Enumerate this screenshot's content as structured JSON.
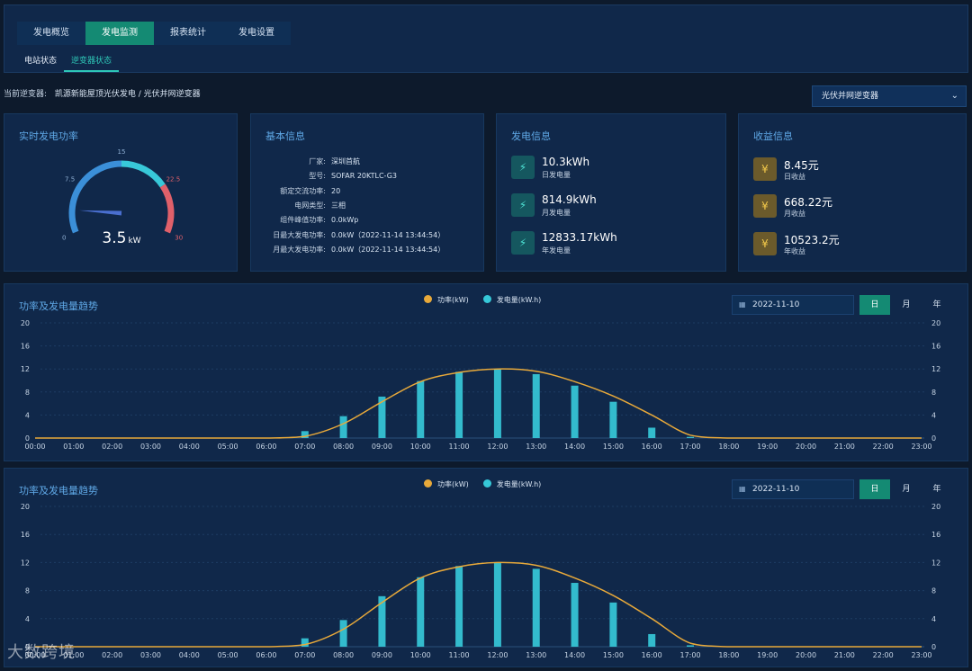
{
  "nav": {
    "tabs": [
      {
        "label": "发电概览",
        "active": false
      },
      {
        "label": "发电监测",
        "active": true
      },
      {
        "label": "报表统计",
        "active": false
      },
      {
        "label": "发电设置",
        "active": false
      }
    ],
    "subtabs": [
      {
        "label": "电站状态",
        "active": false
      },
      {
        "label": "逆变器状态",
        "active": true
      }
    ]
  },
  "current": {
    "label": "当前逆变器:",
    "value": "凯源新能屋顶光伏发电 / 光伏并网逆变器"
  },
  "inverter_select": {
    "value": "光伏并网逆变器",
    "icon": "chevron-down-icon"
  },
  "gauge": {
    "title": "实时发电功率",
    "value": "3.5",
    "unit": "kW",
    "value_num": 3.5,
    "min": 0,
    "max": 30,
    "tick_labels": [
      "0",
      "7.5",
      "15",
      "22.5",
      "30"
    ],
    "colors": {
      "low": "#3b8fd8",
      "mid": "#38c8d8",
      "high": "#e0606a",
      "needle": "#4a6fd0"
    }
  },
  "basic_info": {
    "title": "基本信息",
    "rows": [
      {
        "k": "厂家:",
        "v": "深圳首航"
      },
      {
        "k": "型号:",
        "v": "SOFAR 20KTLC-G3"
      },
      {
        "k": "额定交流功率:",
        "v": "20"
      },
      {
        "k": "电网类型:",
        "v": "三相"
      },
      {
        "k": "组件峰值功率:",
        "v": "0.0kWp"
      },
      {
        "k": "日最大发电功率:",
        "v": "0.0kW（2022-11-14 13:44:54）"
      },
      {
        "k": "月最大发电功率:",
        "v": "0.0kW（2022-11-14 13:44:54）"
      }
    ]
  },
  "generation": {
    "title": "发电信息",
    "icon": "lightning-icon",
    "items": [
      {
        "value": "10.3kWh",
        "label": "日发电量"
      },
      {
        "value": "814.9kWh",
        "label": "月发电量"
      },
      {
        "value": "12833.17kWh",
        "label": "年发电量"
      }
    ]
  },
  "income": {
    "title": "收益信息",
    "icon": "coin-icon",
    "items": [
      {
        "value": "8.45元",
        "label": "日收益"
      },
      {
        "value": "668.22元",
        "label": "月收益"
      },
      {
        "value": "10523.2元",
        "label": "年收益"
      }
    ]
  },
  "chart_panels": [
    {
      "title": "功率及发电量趋势",
      "date": "2022-11-10",
      "ranges": [
        "日",
        "月",
        "年"
      ],
      "active_range": "日"
    },
    {
      "title": "功率及发电量趋势",
      "date": "2022-11-10",
      "ranges": [
        "日",
        "月",
        "年"
      ],
      "active_range": "日"
    }
  ],
  "chart_data": [
    {
      "type": "bar",
      "x": [
        "00:00",
        "01:00",
        "02:00",
        "03:00",
        "04:00",
        "05:00",
        "06:00",
        "07:00",
        "08:00",
        "09:00",
        "10:00",
        "11:00",
        "12:00",
        "13:00",
        "14:00",
        "15:00",
        "16:00",
        "17:00",
        "18:00",
        "19:00",
        "20:00",
        "21:00",
        "22:00",
        "23:00"
      ],
      "series": [
        {
          "name": "功率(kW)",
          "type": "line",
          "color": "#e8a93a",
          "values": [
            0,
            0,
            0,
            0,
            0,
            0,
            0,
            0.3,
            2.5,
            6.3,
            9.8,
            11.4,
            12,
            11.6,
            9.8,
            7.3,
            4,
            0.5,
            0,
            0,
            0,
            0,
            0,
            0
          ]
        },
        {
          "name": "发电量(kW.h)",
          "type": "bar",
          "color": "#36c8d8",
          "values": [
            0,
            0,
            0,
            0,
            0,
            0,
            0,
            1.2,
            3.8,
            7.2,
            9.9,
            11.5,
            12,
            11.1,
            9.1,
            6.3,
            1.8,
            0.2,
            0,
            0,
            0,
            0,
            0,
            0
          ]
        }
      ],
      "ylim": [
        0,
        20
      ],
      "y_ticks": [
        "0",
        "4",
        "8",
        "12",
        "16",
        "20"
      ],
      "grid": true
    },
    {
      "type": "bar",
      "x": [
        "00:00",
        "01:00",
        "02:00",
        "03:00",
        "04:00",
        "05:00",
        "06:00",
        "07:00",
        "08:00",
        "09:00",
        "10:00",
        "11:00",
        "12:00",
        "13:00",
        "14:00",
        "15:00",
        "16:00",
        "17:00",
        "18:00",
        "19:00",
        "20:00",
        "21:00",
        "22:00",
        "23:00"
      ],
      "series": [
        {
          "name": "功率(kW)",
          "type": "line",
          "color": "#e8a93a",
          "values": [
            0,
            0,
            0,
            0,
            0,
            0,
            0,
            0.3,
            2.5,
            6.3,
            9.8,
            11.4,
            12,
            11.6,
            9.8,
            7.3,
            4,
            0.5,
            0,
            0,
            0,
            0,
            0,
            0
          ]
        },
        {
          "name": "发电量(kW.h)",
          "type": "bar",
          "color": "#36c8d8",
          "values": [
            0,
            0,
            0,
            0,
            0,
            0,
            0,
            1.2,
            3.8,
            7.2,
            9.9,
            11.5,
            12,
            11.1,
            9.1,
            6.3,
            1.8,
            0.2,
            0,
            0,
            0,
            0,
            0,
            0
          ]
        }
      ],
      "ylim": [
        0,
        20
      ],
      "y_ticks": [
        "0",
        "4",
        "8",
        "12",
        "16",
        "20"
      ],
      "grid": true
    }
  ],
  "watermark": "大数跨境"
}
